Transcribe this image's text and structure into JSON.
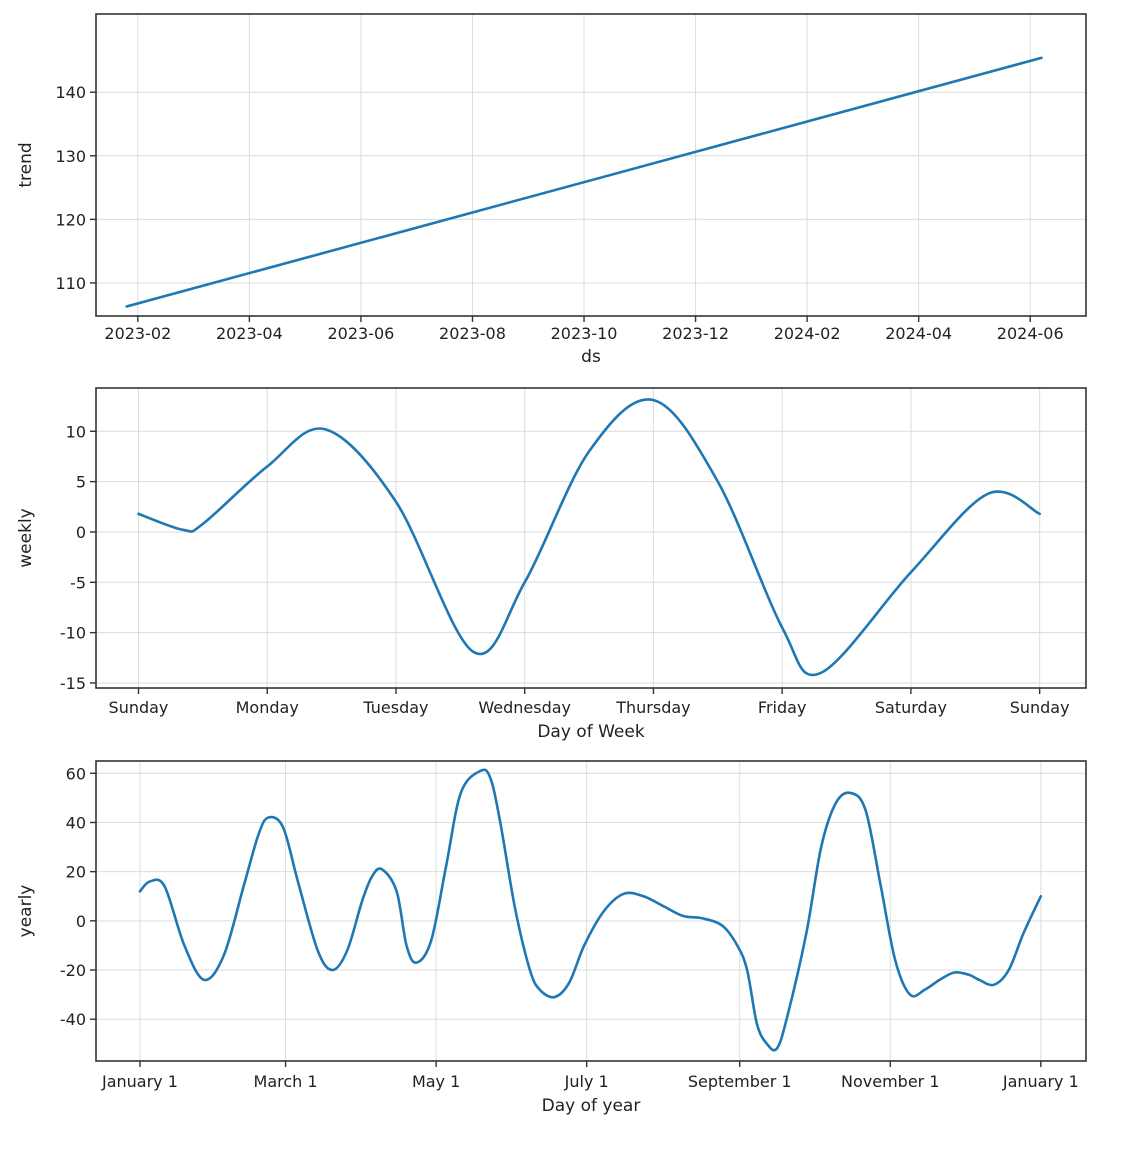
{
  "colors": {
    "line": "#1f77b4",
    "grid": "#dcdcdc",
    "frame": "#333333"
  },
  "chart_data": [
    {
      "type": "line",
      "name": "trend",
      "xlabel": "ds",
      "ylabel": "trend",
      "x_ticks": [
        "2023-02",
        "2023-04",
        "2023-06",
        "2023-08",
        "2023-10",
        "2023-12",
        "2024-02",
        "2024-04",
        "2024-06"
      ],
      "x_range_months": [
        -0.75,
        17.0
      ],
      "x": [
        -0.2,
        16.2
      ],
      "y": [
        106.3,
        145.4
      ],
      "y_ticks": [
        110,
        120,
        130,
        140
      ],
      "ylim": [
        104.8,
        152.3
      ],
      "grid": true
    },
    {
      "type": "line",
      "name": "weekly",
      "xlabel": "Day of Week",
      "ylabel": "weekly",
      "x_ticks": [
        "Sunday",
        "Monday",
        "Tuesday",
        "Wednesday",
        "Thursday",
        "Friday",
        "Saturday",
        "Sunday"
      ],
      "x_range_days": [
        -0.33,
        7.36
      ],
      "x": [
        0,
        0.35,
        0.5,
        1.0,
        1.45,
        2.0,
        2.6,
        3.0,
        3.5,
        4.0,
        4.5,
        5.0,
        5.3,
        6.0,
        6.6,
        7.0
      ],
      "y": [
        1.8,
        0.2,
        0.8,
        6.5,
        10.2,
        3.0,
        -11.9,
        -5.0,
        8.0,
        13.1,
        5.0,
        -9.5,
        -14.0,
        -4.0,
        3.8,
        1.8
      ],
      "y_ticks": [
        -15,
        -10,
        -5,
        0,
        5,
        10
      ],
      "ylim": [
        -15.5,
        14.3
      ],
      "grid": true
    },
    {
      "type": "line",
      "name": "yearly",
      "xlabel": "Day of year",
      "ylabel": "yearly",
      "x_ticks": [
        "January 1",
        "March 1",
        "May 1",
        "July 1",
        "September 1",
        "November 1",
        "January 1"
      ],
      "x_tick_days": [
        0,
        59,
        120,
        181,
        243,
        304,
        365
      ],
      "x_range_days": [
        -17.8,
        383.3
      ],
      "x": [
        0,
        4,
        10,
        18,
        26,
        34,
        42,
        48,
        52,
        58,
        64,
        72,
        78,
        84,
        90,
        94,
        98,
        104,
        108,
        112,
        118,
        124,
        130,
        138,
        142,
        146,
        152,
        158,
        162,
        168,
        174,
        180,
        188,
        196,
        204,
        212,
        220,
        228,
        236,
        242,
        246,
        250,
        254,
        258,
        262,
        270,
        276,
        282,
        288,
        294,
        300,
        306,
        312,
        318,
        324,
        330,
        336,
        340,
        346,
        352,
        358,
        365
      ],
      "y": [
        12,
        16,
        14,
        -10,
        -24,
        -14,
        14,
        35,
        42,
        38,
        16,
        -12,
        -20,
        -12,
        8,
        18,
        21,
        12,
        -10,
        -17,
        -8,
        22,
        52,
        61,
        58,
        40,
        5,
        -20,
        -28,
        -31,
        -25,
        -10,
        4,
        11,
        10,
        6,
        2,
        1,
        -2,
        -10,
        -20,
        -42,
        -50,
        -52,
        -40,
        -5,
        30,
        48,
        52,
        45,
        15,
        -16,
        -30,
        -28,
        -24,
        -21,
        -22,
        -24,
        -26,
        -20,
        -5,
        10
      ],
      "y_ticks": [
        -40,
        -20,
        0,
        20,
        40,
        60
      ],
      "ylim": [
        -57,
        65
      ],
      "grid": true
    }
  ]
}
